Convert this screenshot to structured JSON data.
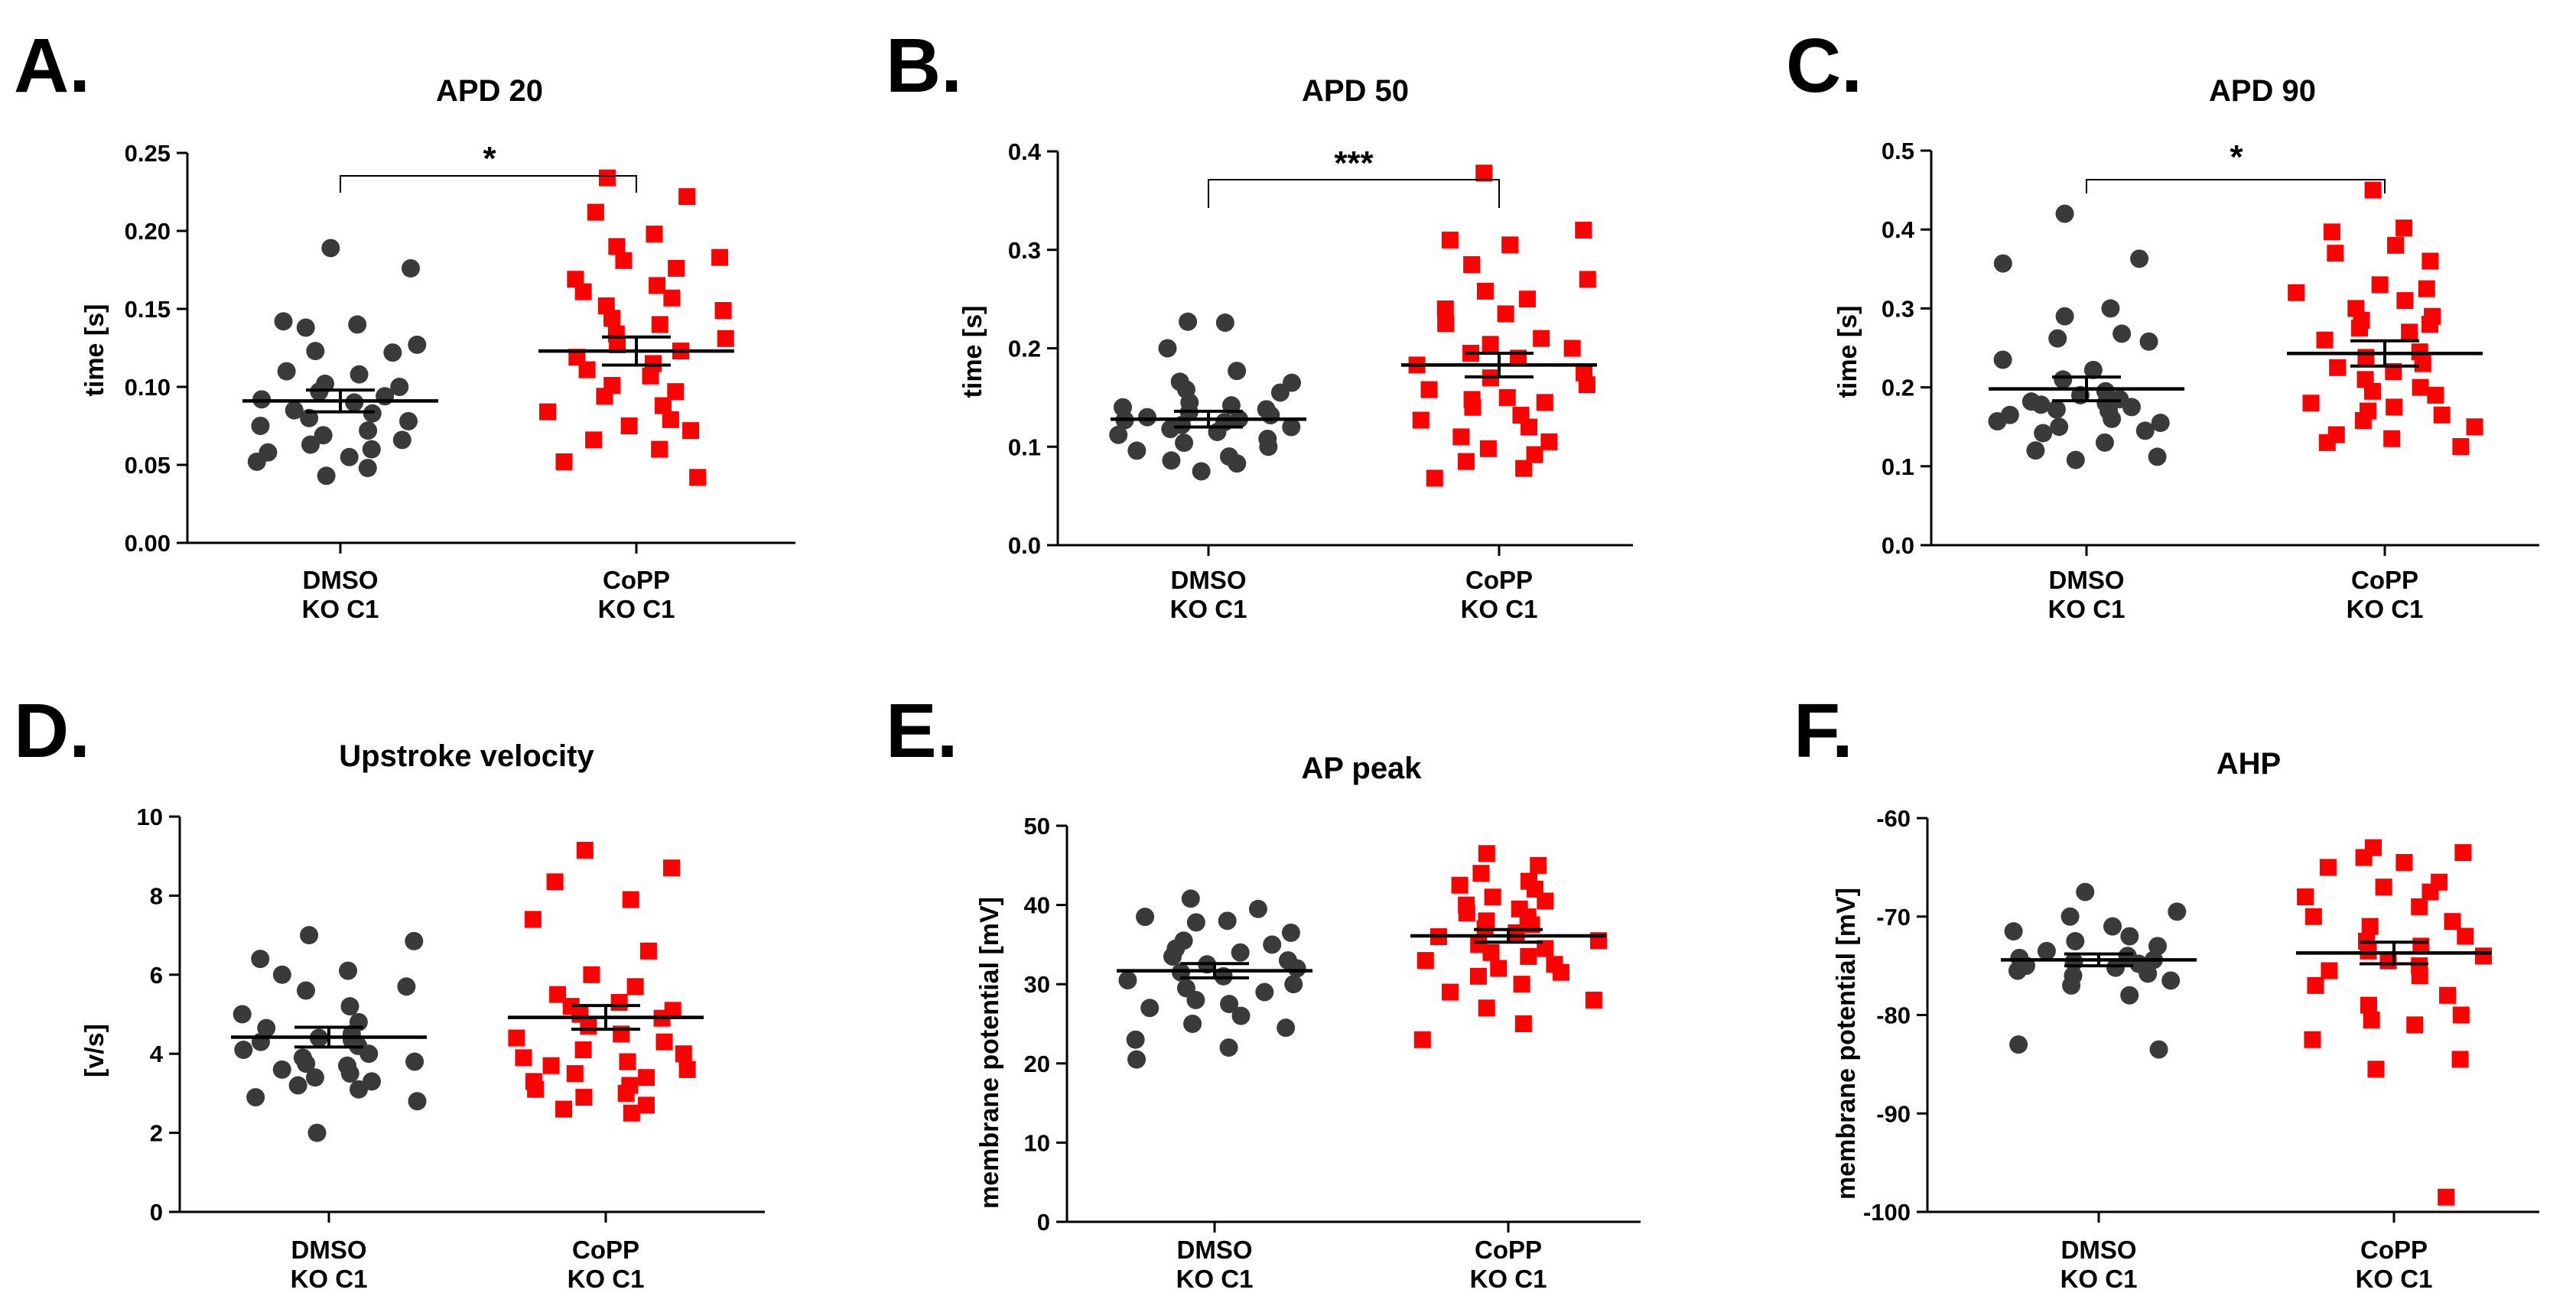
{
  "colors": {
    "dmso": "#3a3a3a",
    "copp": "#ff0000",
    "axis": "#000000"
  },
  "chart_data": [
    {
      "type": "scatter",
      "letter": "A.",
      "title": "APD 20",
      "ylabel": "time [s]",
      "ylim": [
        0,
        0.25
      ],
      "yticks": [
        "0.00",
        "0.05",
        "0.10",
        "0.15",
        "0.20",
        "0.25"
      ],
      "categories": [
        [
          "DMSO",
          "KO C1"
        ],
        [
          "CoPP",
          "KO C1"
        ]
      ],
      "significance": "*",
      "series": [
        {
          "name": "DMSO KO C1",
          "mean": 0.091,
          "sem": 0.007,
          "values": [
            0.189,
            0.176,
            0.142,
            0.14,
            0.138,
            0.127,
            0.123,
            0.122,
            0.11,
            0.108,
            0.102,
            0.1,
            0.097,
            0.094,
            0.092,
            0.09,
            0.085,
            0.083,
            0.08,
            0.078,
            0.075,
            0.072,
            0.069,
            0.066,
            0.063,
            0.06,
            0.058,
            0.055,
            0.052,
            0.048,
            0.043
          ]
        },
        {
          "name": "CoPP KO C1",
          "mean": 0.123,
          "sem": 0.009,
          "values": [
            0.234,
            0.222,
            0.212,
            0.198,
            0.19,
            0.183,
            0.181,
            0.176,
            0.169,
            0.165,
            0.161,
            0.157,
            0.152,
            0.149,
            0.144,
            0.14,
            0.134,
            0.131,
            0.127,
            0.123,
            0.119,
            0.115,
            0.111,
            0.107,
            0.101,
            0.097,
            0.094,
            0.088,
            0.084,
            0.079,
            0.075,
            0.072,
            0.066,
            0.06,
            0.052,
            0.042
          ]
        }
      ]
    },
    {
      "type": "scatter",
      "letter": "B.",
      "title": "APD 50",
      "ylabel": "time [s]",
      "ylim": [
        0,
        0.4
      ],
      "yticks": [
        "0.0",
        "0.1",
        "0.2",
        "0.3",
        "0.4"
      ],
      "categories": [
        [
          "DMSO",
          "KO C1"
        ],
        [
          "CoPP",
          "KO C1"
        ]
      ],
      "significance": "***",
      "series": [
        {
          "name": "DMSO KO C1",
          "mean": 0.128,
          "sem": 0.008,
          "values": [
            0.227,
            0.226,
            0.2,
            0.177,
            0.166,
            0.165,
            0.158,
            0.155,
            0.145,
            0.142,
            0.14,
            0.138,
            0.135,
            0.132,
            0.13,
            0.128,
            0.127,
            0.125,
            0.122,
            0.12,
            0.118,
            0.115,
            0.112,
            0.108,
            0.104,
            0.1,
            0.096,
            0.09,
            0.086,
            0.083,
            0.075
          ]
        },
        {
          "name": "CoPP KO C1",
          "mean": 0.183,
          "sem": 0.012,
          "values": [
            0.378,
            0.32,
            0.31,
            0.305,
            0.285,
            0.27,
            0.258,
            0.25,
            0.24,
            0.235,
            0.225,
            0.21,
            0.204,
            0.2,
            0.195,
            0.19,
            0.183,
            0.175,
            0.17,
            0.163,
            0.158,
            0.15,
            0.148,
            0.145,
            0.14,
            0.132,
            0.127,
            0.12,
            0.11,
            0.105,
            0.098,
            0.092,
            0.085,
            0.078,
            0.068
          ]
        }
      ]
    },
    {
      "type": "scatter",
      "letter": "C.",
      "title": "APD 90",
      "ylabel": "time [s]",
      "ylim": [
        0,
        0.5
      ],
      "yticks": [
        "0.0",
        "0.1",
        "0.2",
        "0.3",
        "0.4",
        "0.5"
      ],
      "categories": [
        [
          "DMSO",
          "KO C1"
        ],
        [
          "CoPP",
          "KO C1"
        ]
      ],
      "significance": "*",
      "series": [
        {
          "name": "DMSO KO C1",
          "mean": 0.198,
          "sem": 0.015,
          "values": [
            0.42,
            0.363,
            0.357,
            0.3,
            0.29,
            0.268,
            0.262,
            0.258,
            0.235,
            0.222,
            0.21,
            0.195,
            0.19,
            0.185,
            0.182,
            0.18,
            0.178,
            0.175,
            0.172,
            0.17,
            0.165,
            0.16,
            0.157,
            0.155,
            0.15,
            0.145,
            0.142,
            0.13,
            0.12,
            0.112,
            0.108
          ]
        },
        {
          "name": "CoPP KO C1",
          "mean": 0.243,
          "sem": 0.016,
          "values": [
            0.45,
            0.402,
            0.397,
            0.38,
            0.37,
            0.36,
            0.33,
            0.325,
            0.32,
            0.31,
            0.3,
            0.29,
            0.285,
            0.28,
            0.275,
            0.27,
            0.26,
            0.245,
            0.238,
            0.23,
            0.225,
            0.22,
            0.21,
            0.2,
            0.195,
            0.19,
            0.18,
            0.175,
            0.17,
            0.165,
            0.158,
            0.15,
            0.14,
            0.135,
            0.13,
            0.125
          ]
        }
      ]
    },
    {
      "type": "scatter",
      "letter": "D.",
      "title": "Upstroke velocity",
      "ylabel": "[v/s]",
      "ylim": [
        0,
        10
      ],
      "yticks": [
        "0",
        "2",
        "4",
        "6",
        "8",
        "10"
      ],
      "categories": [
        [
          "DMSO",
          "KO C1"
        ],
        [
          "CoPP",
          "KO C1"
        ]
      ],
      "significance": "",
      "series": [
        {
          "name": "DMSO KO C1",
          "mean": 4.42,
          "sem": 0.25,
          "values": [
            7.0,
            6.85,
            6.4,
            6.1,
            6.0,
            5.7,
            5.6,
            5.2,
            5.0,
            4.8,
            4.65,
            4.5,
            4.4,
            4.35,
            4.3,
            4.2,
            4.1,
            4.0,
            3.9,
            3.8,
            3.75,
            3.7,
            3.6,
            3.5,
            3.4,
            3.3,
            3.2,
            3.1,
            2.9,
            2.8,
            2.0
          ]
        },
        {
          "name": "CoPP KO C1",
          "mean": 4.92,
          "sem": 0.3,
          "values": [
            9.15,
            8.7,
            8.35,
            7.9,
            7.4,
            6.6,
            6.0,
            5.7,
            5.5,
            5.3,
            5.2,
            5.1,
            5.0,
            4.9,
            4.7,
            4.5,
            4.4,
            4.3,
            4.1,
            4.0,
            3.9,
            3.8,
            3.7,
            3.6,
            3.5,
            3.4,
            3.3,
            3.2,
            3.1,
            3.0,
            2.9,
            2.7,
            2.6,
            2.5
          ]
        }
      ]
    },
    {
      "type": "scatter",
      "letter": "E.",
      "title": "AP peak",
      "ylabel": "membrane potential [mV]",
      "ylim": [
        0,
        50
      ],
      "yticks": [
        "0",
        "10",
        "20",
        "30",
        "40",
        "50"
      ],
      "categories": [
        [
          "DMSO",
          "KO C1"
        ],
        [
          "CoPP",
          "KO C1"
        ]
      ],
      "significance": "",
      "series": [
        {
          "name": "DMSO KO C1",
          "mean": 31.7,
          "sem": 0.9,
          "values": [
            40.8,
            39.5,
            38.5,
            38.0,
            37.8,
            36.5,
            35.5,
            35.0,
            34.5,
            34.0,
            33.5,
            33.0,
            32.5,
            32.0,
            31.5,
            31.0,
            30.5,
            30.0,
            29.5,
            29.0,
            28.0,
            27.5,
            27.0,
            26.0,
            25.0,
            24.5,
            23.0,
            22.0,
            20.5
          ]
        },
        {
          "name": "CoPP KO C1",
          "mean": 36.1,
          "sem": 0.8,
          "values": [
            46.5,
            45.0,
            44.0,
            43.0,
            42.5,
            42.0,
            41.0,
            40.5,
            40.0,
            39.5,
            39.0,
            38.5,
            38.0,
            37.5,
            37.0,
            36.5,
            36.0,
            35.5,
            35.0,
            34.5,
            34.0,
            33.5,
            33.0,
            32.5,
            32.0,
            31.5,
            31.0,
            30.0,
            29.0,
            28.0,
            27.0,
            25.0,
            23.0
          ]
        }
      ]
    },
    {
      "type": "scatter",
      "letter": "F.",
      "title": "AHP",
      "ylabel": "membrane potential [mV]",
      "ylim": [
        -100,
        -60
      ],
      "yticks": [
        "-100",
        "-90",
        "-80",
        "-70",
        "-60"
      ],
      "categories": [
        [
          "DMSO",
          "KO C1"
        ],
        [
          "CoPP",
          "KO C1"
        ]
      ],
      "significance": "",
      "series": [
        {
          "name": "DMSO KO C1",
          "mean": -74.4,
          "sem": 0.6,
          "values": [
            -67.5,
            -69.5,
            -70.0,
            -71.0,
            -71.5,
            -72.0,
            -72.5,
            -73.0,
            -73.5,
            -74.0,
            -74.2,
            -74.4,
            -74.6,
            -74.8,
            -75.0,
            -75.2,
            -75.5,
            -75.8,
            -76.0,
            -76.5,
            -77.0,
            -78.0,
            -83.0,
            -83.5
          ]
        },
        {
          "name": "CoPP KO C1",
          "mean": -73.7,
          "sem": 1.1,
          "values": [
            -63.0,
            -63.5,
            -64.0,
            -64.5,
            -65.0,
            -66.5,
            -67.0,
            -67.5,
            -68.0,
            -69.0,
            -70.0,
            -70.5,
            -71.0,
            -72.0,
            -72.5,
            -73.0,
            -73.5,
            -74.0,
            -74.5,
            -75.0,
            -75.5,
            -76.0,
            -77.0,
            -78.0,
            -79.0,
            -80.0,
            -80.5,
            -81.0,
            -82.5,
            -84.5,
            -85.5,
            -98.5
          ]
        }
      ]
    }
  ]
}
